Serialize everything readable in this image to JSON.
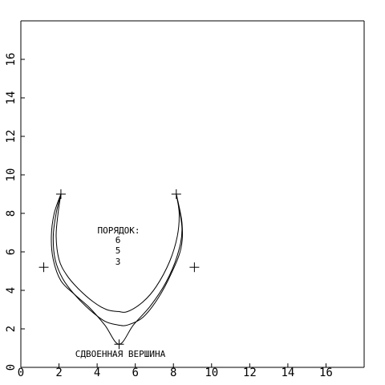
{
  "chart_data": {
    "type": "line",
    "title": "",
    "xlabel": "",
    "ylabel": "",
    "xlim": [
      0,
      18
    ],
    "ylim": [
      0,
      18
    ],
    "grid": false,
    "x_ticks": [
      {
        "value": 0,
        "label": "0"
      },
      {
        "value": 2,
        "label": "2"
      },
      {
        "value": 4,
        "label": "4"
      },
      {
        "value": 6,
        "label": "6"
      },
      {
        "value": 8,
        "label": "8"
      },
      {
        "value": 10,
        "label": "10"
      },
      {
        "value": 12,
        "label": "12"
      },
      {
        "value": 14,
        "label": "14"
      },
      {
        "value": 16,
        "label": "16"
      }
    ],
    "y_ticks": [
      {
        "value": 0,
        "label": "0"
      },
      {
        "value": 2,
        "label": "2"
      },
      {
        "value": 4,
        "label": "4"
      },
      {
        "value": 6,
        "label": "6"
      },
      {
        "value": 8,
        "label": "8"
      },
      {
        "value": 10,
        "label": "10"
      },
      {
        "value": 12,
        "label": "12"
      },
      {
        "value": 14,
        "label": "14"
      },
      {
        "value": 16,
        "label": "16"
      }
    ],
    "series": [
      {
        "id": "order-6",
        "x": [
          2.1,
          1.95,
          1.85,
          2.0,
          2.4,
          3.0,
          3.8,
          4.5,
          5.1,
          5.6,
          6.4,
          7.1,
          7.8,
          8.2,
          8.3,
          8.15
        ],
        "y": [
          9.0,
          8.0,
          6.8,
          5.6,
          4.8,
          4.1,
          3.4,
          3.0,
          2.9,
          2.9,
          3.4,
          4.2,
          5.5,
          6.8,
          8.0,
          9.0
        ]
      },
      {
        "id": "order-5",
        "x": [
          2.1,
          1.85,
          1.7,
          1.8,
          2.2,
          2.8,
          3.6,
          4.4,
          5.1,
          5.6,
          6.4,
          7.2,
          7.9,
          8.4,
          8.45,
          8.15
        ],
        "y": [
          9.0,
          8.0,
          6.8,
          5.6,
          4.6,
          3.8,
          3.0,
          2.4,
          2.2,
          2.2,
          2.6,
          3.6,
          4.9,
          6.2,
          7.5,
          9.0
        ]
      },
      {
        "id": "order-3",
        "x": [
          2.1,
          1.75,
          1.6,
          1.7,
          2.1,
          2.8,
          3.6,
          4.4,
          5.15,
          5.9,
          6.8,
          7.6,
          8.2,
          8.45,
          8.15
        ],
        "y": [
          9.0,
          8.0,
          6.8,
          5.6,
          4.5,
          3.8,
          3.1,
          2.2,
          1.2,
          2.2,
          3.2,
          4.4,
          5.8,
          7.2,
          9.0
        ]
      }
    ],
    "markers": [
      {
        "id": "left-top",
        "x": 2.1,
        "y": 9.0
      },
      {
        "id": "right-top",
        "x": 8.15,
        "y": 9.0
      },
      {
        "id": "left-side",
        "x": 1.2,
        "y": 5.2
      },
      {
        "id": "right-side",
        "x": 9.1,
        "y": 5.2
      },
      {
        "id": "double-vertex",
        "x": 5.15,
        "y": 1.2
      }
    ],
    "annotations": {
      "order_label": "ПОРЯДОК:",
      "order_values": [
        "6",
        "5",
        "3"
      ],
      "vertex_label": "СДВОЕННАЯ ВЕРШИНА"
    }
  }
}
